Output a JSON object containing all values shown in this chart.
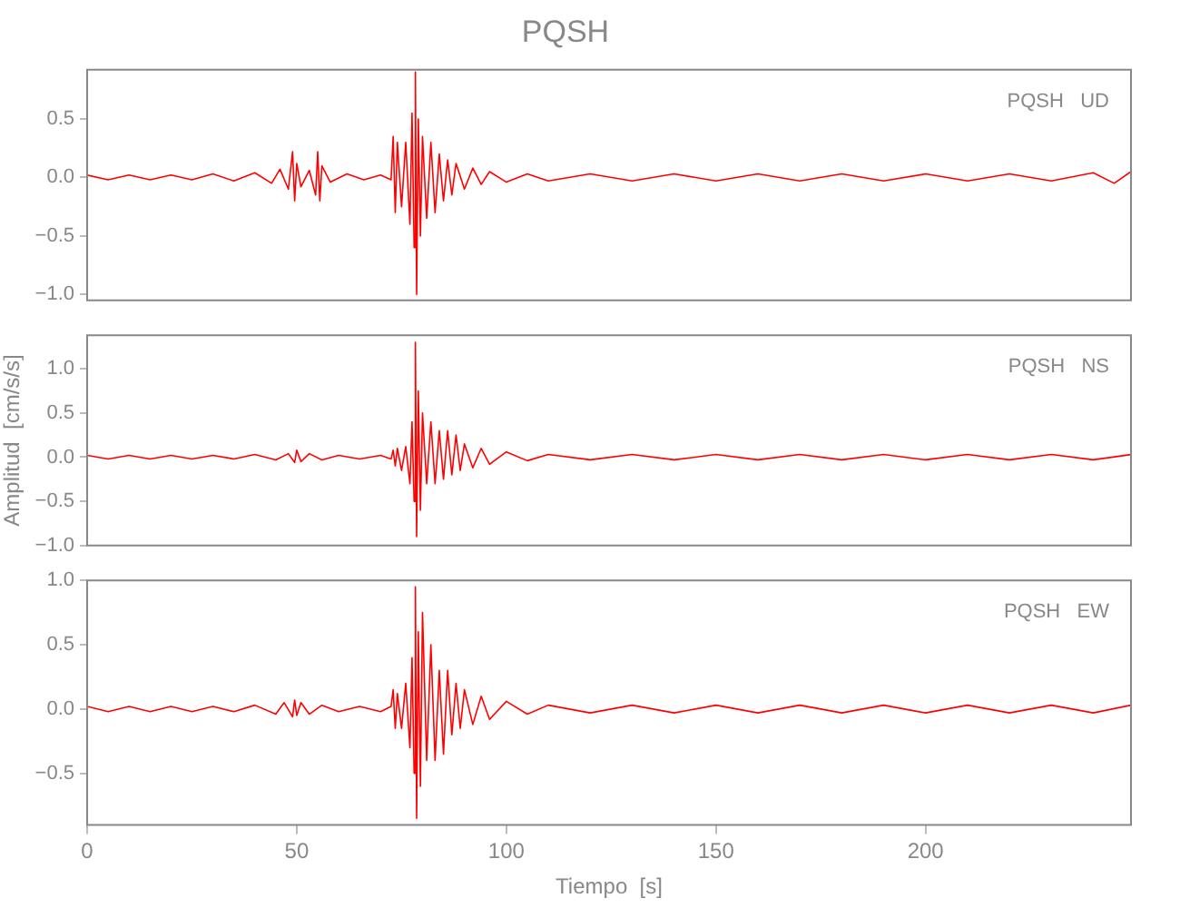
{
  "chart_data": [
    {
      "type": "line",
      "title": "PQSH",
      "annotations": [
        "PQSH   UD"
      ],
      "xlim": [
        0,
        249
      ],
      "xticks": [
        0,
        50,
        100,
        150,
        200
      ],
      "ylim": [
        -1.05,
        0.92
      ],
      "yticks": [
        {
          "value": 0.5,
          "label": "0.5"
        },
        {
          "value": 0,
          "label": "0.0"
        },
        {
          "value": -0.5,
          "label": "−0.5"
        },
        {
          "value": -1,
          "label": "−1.0"
        }
      ],
      "tick_labels": "y",
      "grid": false,
      "legend": false,
      "marker": "none",
      "line_style": "solid",
      "series": [
        {
          "color": "#ff0000",
          "x": [
            0,
            5,
            10,
            15,
            20,
            25,
            30,
            35,
            40,
            44,
            46,
            48,
            49,
            49.5,
            50,
            51,
            53,
            54.5,
            55,
            55.5,
            56,
            58,
            62,
            66,
            70,
            72.5,
            73,
            73.5,
            74,
            75,
            76,
            77,
            77.5,
            78,
            78.3,
            78.6,
            79,
            79.5,
            80,
            81,
            82,
            83,
            84,
            85,
            86,
            87,
            88,
            90,
            92,
            94,
            96,
            100,
            105,
            110,
            120,
            130,
            140,
            150,
            160,
            170,
            180,
            190,
            200,
            210,
            220,
            230,
            240,
            245,
            249
          ],
          "values": [
            0.02,
            -0.02,
            0.02,
            -0.02,
            0.02,
            -0.02,
            0.03,
            -0.03,
            0.04,
            -0.05,
            0.07,
            -0.1,
            0.22,
            -0.2,
            0.12,
            -0.08,
            0.06,
            -0.15,
            0.22,
            -0.2,
            0.1,
            -0.04,
            0.03,
            -0.02,
            0.02,
            -0.02,
            0.35,
            -0.3,
            0.3,
            -0.25,
            0.3,
            -0.4,
            0.55,
            -0.6,
            0.9,
            -1.0,
            0.5,
            -0.5,
            0.35,
            -0.35,
            0.3,
            -0.3,
            0.2,
            -0.2,
            0.15,
            -0.15,
            0.12,
            -0.1,
            0.08,
            -0.06,
            0.05,
            -0.04,
            0.03,
            -0.03,
            0.03,
            -0.03,
            0.03,
            -0.03,
            0.03,
            -0.03,
            0.03,
            -0.03,
            0.03,
            -0.03,
            0.03,
            -0.03,
            0.04,
            -0.05,
            0.05
          ]
        }
      ]
    },
    {
      "type": "line",
      "ylabel": "Amplitud  [cm/s/s]",
      "annotations": [
        "PQSH   NS"
      ],
      "xlim": [
        0,
        249
      ],
      "xticks": [
        0,
        50,
        100,
        150,
        200
      ],
      "ylim": [
        -1.0,
        1.38
      ],
      "yticks": [
        {
          "value": 1,
          "label": "1.0"
        },
        {
          "value": 0.5,
          "label": "0.5"
        },
        {
          "value": 0,
          "label": "0.0"
        },
        {
          "value": -0.5,
          "label": "−0.5"
        },
        {
          "value": -1,
          "label": "−1.0"
        }
      ],
      "tick_labels": "y",
      "grid": false,
      "legend": false,
      "marker": "none",
      "line_style": "solid",
      "series": [
        {
          "color": "#ff0000",
          "x": [
            0,
            5,
            10,
            15,
            20,
            25,
            30,
            35,
            40,
            45,
            48,
            49.5,
            50,
            51,
            53,
            56,
            60,
            65,
            70,
            72.5,
            73,
            73.5,
            74,
            75,
            76,
            77,
            77.5,
            78,
            78.3,
            78.6,
            79,
            79.5,
            80,
            81,
            82,
            83,
            84,
            85,
            86,
            87,
            88,
            89,
            90,
            92,
            94,
            96,
            100,
            105,
            110,
            120,
            130,
            140,
            150,
            160,
            170,
            180,
            190,
            200,
            210,
            220,
            230,
            240,
            249
          ],
          "values": [
            0.02,
            -0.02,
            0.02,
            -0.02,
            0.02,
            -0.02,
            0.02,
            -0.02,
            0.03,
            -0.03,
            0.04,
            -0.06,
            0.08,
            -0.05,
            0.04,
            -0.03,
            0.02,
            -0.02,
            0.02,
            -0.02,
            0.08,
            -0.1,
            0.1,
            -0.15,
            0.12,
            -0.3,
            0.4,
            -0.5,
            1.3,
            -0.9,
            0.75,
            -0.6,
            0.5,
            -0.3,
            0.4,
            -0.3,
            0.3,
            -0.25,
            0.3,
            -0.2,
            0.25,
            -0.15,
            0.15,
            -0.12,
            0.1,
            -0.08,
            0.06,
            -0.04,
            0.03,
            -0.03,
            0.03,
            -0.03,
            0.03,
            -0.03,
            0.03,
            -0.03,
            0.03,
            -0.03,
            0.03,
            -0.03,
            0.03,
            -0.03,
            0.03
          ]
        }
      ]
    },
    {
      "type": "line",
      "xlabel": "Tiempo  [s]",
      "annotations": [
        "PQSH   EW"
      ],
      "xlim": [
        0,
        249
      ],
      "xticks": [
        0,
        50,
        100,
        150,
        200
      ],
      "ylim": [
        -0.9,
        1.0
      ],
      "yticks": [
        {
          "value": 1,
          "label": "1.0"
        },
        {
          "value": 0.5,
          "label": "0.5"
        },
        {
          "value": 0,
          "label": "0.0"
        },
        {
          "value": -0.5,
          "label": "−0.5"
        }
      ],
      "grid": false,
      "legend": false,
      "marker": "none",
      "line_style": "solid",
      "series": [
        {
          "color": "#ff0000",
          "x": [
            0,
            5,
            10,
            15,
            20,
            25,
            30,
            35,
            40,
            45,
            47,
            49,
            49.5,
            50,
            51,
            53,
            56,
            60,
            65,
            70,
            72.5,
            73,
            73.5,
            74,
            75,
            76,
            77,
            77.5,
            78,
            78.3,
            78.6,
            79,
            79.5,
            80,
            81,
            82,
            83,
            84,
            85,
            86,
            87,
            88,
            89,
            90,
            92,
            94,
            96,
            100,
            105,
            110,
            120,
            130,
            140,
            150,
            160,
            170,
            180,
            190,
            200,
            210,
            220,
            230,
            240,
            249
          ],
          "values": [
            0.02,
            -0.02,
            0.02,
            -0.02,
            0.02,
            -0.02,
            0.02,
            -0.02,
            0.03,
            -0.04,
            0.05,
            -0.06,
            0.07,
            -0.05,
            0.05,
            -0.04,
            0.03,
            -0.02,
            0.02,
            -0.02,
            0.02,
            0.15,
            -0.15,
            0.12,
            -0.15,
            0.2,
            -0.3,
            0.4,
            -0.5,
            0.95,
            -0.85,
            0.6,
            -0.6,
            0.75,
            -0.4,
            0.5,
            -0.4,
            0.3,
            -0.35,
            0.3,
            -0.2,
            0.2,
            -0.15,
            0.15,
            -0.12,
            0.1,
            -0.08,
            0.06,
            -0.04,
            0.03,
            -0.03,
            0.03,
            -0.03,
            0.03,
            -0.03,
            0.03,
            -0.03,
            0.03,
            -0.03,
            0.03,
            -0.03,
            0.03,
            -0.03,
            0.03
          ]
        }
      ]
    }
  ]
}
